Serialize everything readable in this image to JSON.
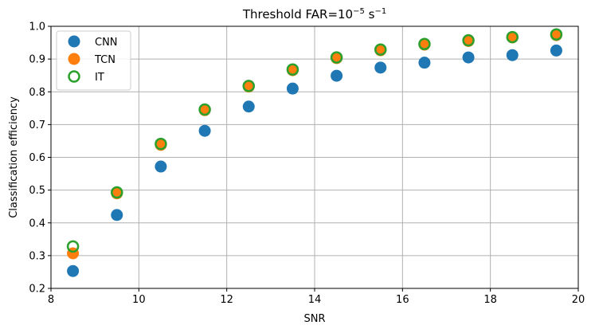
{
  "chart_data": {
    "type": "scatter",
    "title": "Threshold FAR=10",
    "title_superscript": "−5",
    "title_unit": " s",
    "title_unit_superscript": "−1",
    "xlabel": "SNR",
    "ylabel": "Classification efficiency",
    "xlim": [
      8,
      20
    ],
    "ylim": [
      0.2,
      1.0
    ],
    "xticks": [
      8,
      10,
      12,
      14,
      16,
      18,
      20
    ],
    "yticks": [
      0.2,
      0.3,
      0.4,
      0.5,
      0.6,
      0.7,
      0.8,
      0.9,
      1.0
    ],
    "xtick_labels": [
      "8",
      "10",
      "12",
      "14",
      "16",
      "18",
      "20"
    ],
    "ytick_labels": [
      "0.2",
      "0.3",
      "0.4",
      "0.5",
      "0.6",
      "0.7",
      "0.8",
      "0.9",
      "1.0"
    ],
    "grid": true,
    "legend_position": "top-left",
    "x": [
      8.5,
      9.5,
      10.5,
      11.5,
      12.5,
      13.5,
      14.5,
      15.5,
      16.5,
      17.5,
      18.5,
      19.5
    ],
    "series": [
      {
        "name": "CNN",
        "color": "#1f77b4",
        "marker": "filled-circle",
        "values": [
          0.253,
          0.424,
          0.572,
          0.681,
          0.755,
          0.81,
          0.849,
          0.874,
          0.889,
          0.905,
          0.912,
          0.926
        ]
      },
      {
        "name": "TCN",
        "color": "#ff7f0e",
        "marker": "filled-circle",
        "values": [
          0.307,
          0.49,
          0.638,
          0.744,
          0.816,
          0.866,
          0.903,
          0.927,
          0.944,
          0.955,
          0.966,
          0.973
        ]
      },
      {
        "name": "IT",
        "color": "#2ca02c",
        "marker": "hollow-circle",
        "values": [
          0.328,
          0.493,
          0.641,
          0.746,
          0.818,
          0.868,
          0.905,
          0.929,
          0.946,
          0.957,
          0.967,
          0.975
        ]
      }
    ]
  }
}
